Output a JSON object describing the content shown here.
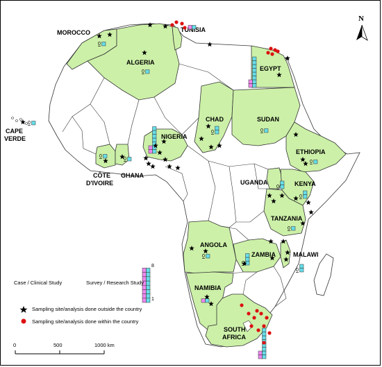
{
  "colors": {
    "sampled_country": "#ccf0a8",
    "other_country": "#ffffff",
    "border": "#333333",
    "case_box": "#ee88ee",
    "survey_box": "#66dde8",
    "star": "#000000",
    "dot": "#dd1111"
  },
  "north_label": "N",
  "countries": [
    {
      "name": "MOROCCO",
      "case": 0,
      "survey": 1
    },
    {
      "name": "ALGERIA",
      "case": 0,
      "survey": 1
    },
    {
      "name": "TUNISIA",
      "case": 1,
      "survey": 1
    },
    {
      "name": "EGYPT",
      "case": 2,
      "survey": 8
    },
    {
      "name": "CAPE VERDE",
      "case": 0,
      "survey": 1
    },
    {
      "name": "CHAD",
      "case": 0,
      "survey": 2
    },
    {
      "name": "SUDAN",
      "case": 0,
      "survey": 1
    },
    {
      "name": "NIGERIA",
      "case": 2,
      "survey": 7
    },
    {
      "name": "ETHIOPIA",
      "case": 0,
      "survey": 1
    },
    {
      "name": "CÔTE D'IVOIRE",
      "case": 0,
      "survey": 1
    },
    {
      "name": "GHANA",
      "case": 0,
      "survey": 1
    },
    {
      "name": "UGANDA",
      "case": 0,
      "survey": 2
    },
    {
      "name": "KENYA",
      "case": 0,
      "survey": 2
    },
    {
      "name": "TANZANIA",
      "case": 0,
      "survey": 1
    },
    {
      "name": "ANGOLA",
      "case": 0,
      "survey": 1
    },
    {
      "name": "ZAMBIA",
      "case": 0,
      "survey": 3
    },
    {
      "name": "MALAWI",
      "case": 0,
      "survey": 2
    },
    {
      "name": "NAMIBIA",
      "case": 1,
      "survey": 1
    },
    {
      "name": "SOUTH AFRICA",
      "case": 2,
      "survey": 8
    }
  ],
  "zero_label": "0",
  "legend": {
    "case_label": "Case / Clinical Study",
    "survey_label": "Survey / Research Study",
    "scale_max": "8",
    "scale_min": "1",
    "star_label": "Sampling site/analysis done outside the country",
    "dot_label": "Sampling site/analysis done within the country"
  },
  "scalebar": {
    "ticks": [
      "0",
      "500",
      "1000 km"
    ]
  }
}
